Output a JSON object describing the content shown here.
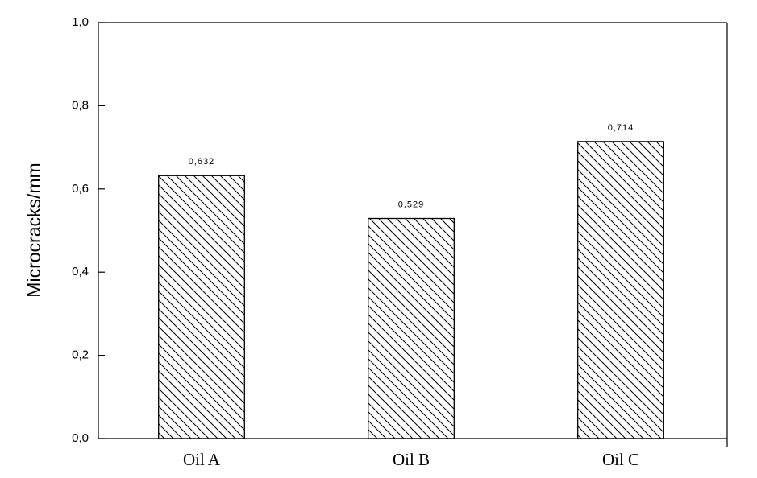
{
  "chart_data": {
    "type": "bar",
    "y_label": "Microcracks/mm",
    "categories": [
      "Oil A",
      "Oil B",
      "Oil C"
    ],
    "values": [
      0.632,
      0.529,
      0.714
    ],
    "value_labels": [
      "0,632",
      "0,529",
      "0,714"
    ],
    "color": "#000000",
    "ylim": [
      0,
      1
    ],
    "yticks": [
      {
        "value": 0,
        "label": "0,0"
      },
      {
        "value": 0.2,
        "label": "0,2"
      },
      {
        "value": 0.4,
        "label": "0,4"
      },
      {
        "value": 0.6,
        "label": "0,6"
      },
      {
        "value": 0.8,
        "label": "0,8"
      },
      {
        "value": 1,
        "label": "1,0"
      }
    ]
  }
}
